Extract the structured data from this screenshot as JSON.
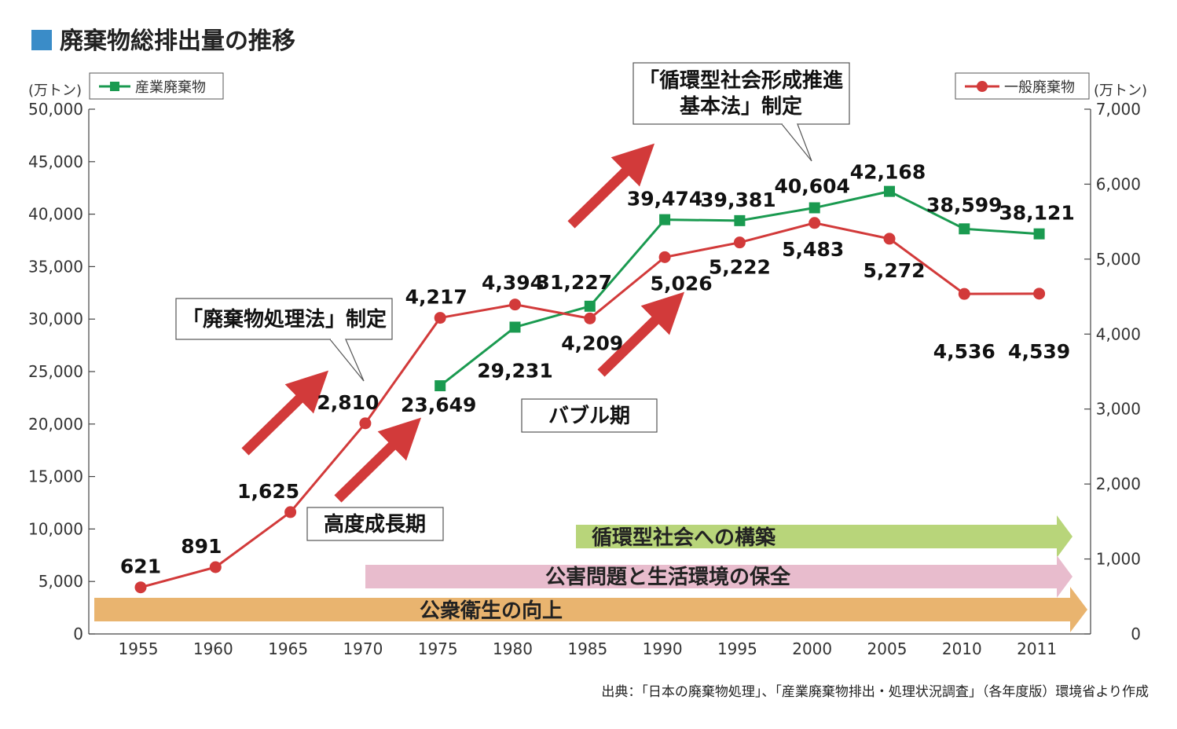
{
  "chart_data": {
    "type": "line",
    "title": "廃棄物総排出量の推移",
    "categories": [
      "1955",
      "1960",
      "1965",
      "1970",
      "1975",
      "1980",
      "1985",
      "1990",
      "1995",
      "2000",
      "2005",
      "2010",
      "2011"
    ],
    "y_left": {
      "unit": "(万トン)",
      "range": [
        0,
        50000
      ],
      "ticks": [
        "0",
        "5,000",
        "10,000",
        "15,000",
        "20,000",
        "25,000",
        "30,000",
        "35,000",
        "40,000",
        "45,000",
        "50,000"
      ]
    },
    "y_right": {
      "unit": "(万トン)",
      "range": [
        0,
        7000
      ],
      "ticks": [
        "0",
        "1,000",
        "2,000",
        "3,000",
        "4,000",
        "5,000",
        "6,000",
        "7,000"
      ]
    },
    "series": [
      {
        "name": "産業廃棄物",
        "axis": "left",
        "color": "#1a9a50",
        "values": [
          null,
          null,
          null,
          null,
          23649,
          29231,
          31227,
          39474,
          39381,
          40604,
          42168,
          38599,
          38121
        ],
        "labels": [
          "",
          "",
          "",
          "",
          "23,649",
          "29,231",
          "31,227",
          "39,474",
          "39,381",
          "40,604",
          "42,168",
          "38,599",
          "38,121"
        ]
      },
      {
        "name": "一般廃棄物",
        "axis": "right",
        "color": "#d23a3a",
        "values": [
          621,
          891,
          1625,
          2810,
          4217,
          4394,
          4209,
          5026,
          5222,
          5483,
          5272,
          4536,
          4539
        ],
        "labels": [
          "621",
          "891",
          "1,625",
          "2,810",
          "4,217",
          "4,394",
          "4,209",
          "5,026",
          "5,222",
          "5,483",
          "5,272",
          "4,536",
          "4,539"
        ]
      }
    ],
    "legend_placement": "top-left and top-right",
    "grid": false,
    "annotations": {
      "law1": "「廃棄物処理法」制定",
      "law2_line1": "「循環型社会形成推進",
      "law2_line2": "基本法」制定",
      "period_growth": "高度成長期",
      "period_bubble": "バブル期"
    },
    "bands": [
      {
        "label": "循環型社会への構築",
        "color": "#b8d57a"
      },
      {
        "label": "公害問題と生活環境の保全",
        "color": "#e8bccd"
      },
      {
        "label": "公衆衛生の向上",
        "color": "#e9b46f"
      }
    ],
    "source": "出典：「日本の廃棄物処理」、「産業廃棄物排出・処理状況調査」（各年度版）環境省より作成"
  },
  "colors": {
    "title_square": "#3a8cc8",
    "arrow": "#d23a3a",
    "axis": "#444444"
  }
}
